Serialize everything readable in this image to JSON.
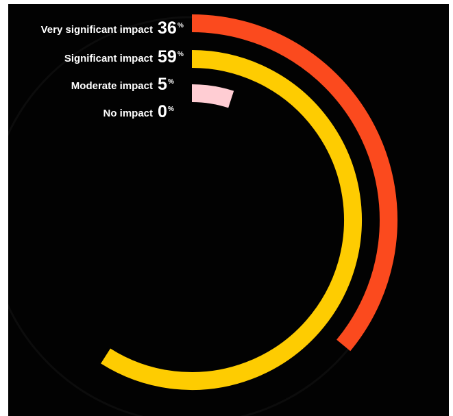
{
  "chart_data": {
    "type": "radial-bar",
    "unit": "%",
    "series": [
      {
        "name": "Very significant impact",
        "value": 36,
        "color": "#FB4A1E"
      },
      {
        "name": "Significant impact",
        "value": 59,
        "color": "#FECC01"
      },
      {
        "name": "Moderate impact",
        "value": 5,
        "color": "#FFCDD3"
      },
      {
        "name": "No impact",
        "value": 0,
        "color": "#FFFFFF"
      }
    ],
    "background_color": "#020202"
  }
}
